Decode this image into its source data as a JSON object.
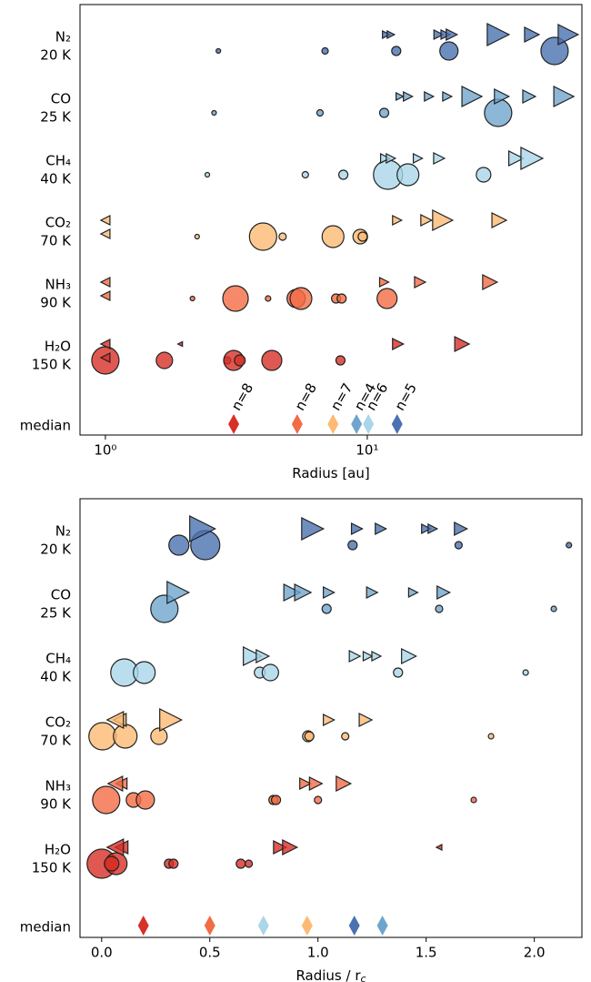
{
  "chart_data": [
    {
      "type": "scatter",
      "xlabel": "Radius [au]",
      "log_x": true,
      "xlim": [
        0.8,
        66
      ],
      "xticks": [
        {
          "value": 1,
          "label": "10⁰"
        },
        {
          "value": 10,
          "label": "10¹"
        }
      ],
      "median_label": "median",
      "series": [
        {
          "name": "N₂",
          "temperature": "20 K",
          "color": "#4a72b0",
          "median": 13.0,
          "n_label": "n=5",
          "x": [
            2.7,
            6.9,
            12.9,
            20.5,
            51.9,
            11.8,
            12.3,
            18.7,
            19.9,
            21.0,
            31.6,
            42.5,
            58.5
          ],
          "sizes": [
            2.5,
            3.5,
            5,
            10,
            15,
            4,
            4,
            5,
            5,
            6,
            12,
            8,
            11
          ],
          "markers": [
            "o",
            "o",
            "o",
            "o",
            "o",
            ">",
            ">",
            ">",
            ">",
            ">",
            ">",
            ">",
            ">"
          ]
        },
        {
          "name": "CO",
          "temperature": "25 K",
          "color": "#6fa5cc",
          "median": 9.1,
          "n_label": "n=4",
          "x": [
            2.6,
            6.6,
            11.6,
            31.6,
            13.3,
            14.3,
            17.2,
            20.2,
            25.1,
            32.6,
            41.5,
            56.3
          ],
          "sizes": [
            2.5,
            3.5,
            5,
            15,
            4,
            5,
            5,
            5,
            11,
            8,
            7,
            11
          ],
          "markers": [
            "o",
            "o",
            "o",
            "o",
            ">",
            ">",
            ">",
            ">",
            ">",
            ">",
            ">",
            ">"
          ]
        },
        {
          "name": "CH₄",
          "temperature": "40 K",
          "color": "#a9d6e8",
          "median": 10.1,
          "n_label": "n=6",
          "x": [
            2.45,
            5.8,
            8.1,
            12.0,
            14.3,
            27.8,
            11.7,
            12.3,
            15.6,
            18.8,
            37.0,
            42.5
          ],
          "sizes": [
            2.5,
            3.5,
            5,
            16,
            12,
            8,
            5,
            5,
            5,
            6,
            8,
            12
          ],
          "markers": [
            "o",
            "o",
            "o",
            "o",
            "o",
            "o",
            ">",
            ">",
            ">",
            ">",
            ">",
            ">"
          ]
        },
        {
          "name": "CO₂",
          "temperature": "70 K",
          "color": "#fdba74",
          "median": 7.4,
          "n_label": "n=7",
          "x": [
            2.24,
            4.0,
            4.75,
            7.4,
            9.4,
            9.6,
            13.0,
            16.8,
            19.4,
            31.9,
            1.0,
            1.0
          ],
          "sizes": [
            2.5,
            15,
            4,
            12,
            8,
            5,
            5,
            6,
            11,
            8,
            5,
            5
          ],
          "markers": [
            "o",
            "o",
            "o",
            "o",
            "o",
            "o",
            ">",
            ">",
            ">",
            ">",
            "<",
            "<"
          ]
        },
        {
          "name": "NH₃",
          "temperature": "90 K",
          "color": "#f26c45",
          "median": 5.4,
          "n_label": "n=8",
          "x": [
            2.15,
            3.14,
            4.18,
            5.35,
            5.58,
            7.6,
            7.98,
            11.9,
            11.6,
            15.9,
            29.4,
            1.0,
            1.0
          ],
          "sizes": [
            2.5,
            14,
            3,
            10,
            12,
            5,
            5,
            11,
            5,
            6,
            8,
            5,
            5
          ],
          "markers": [
            "o",
            "o",
            "o",
            "o",
            "o",
            "o",
            "o",
            "o",
            ">",
            ">",
            ">",
            "<",
            "<"
          ]
        },
        {
          "name": "H₂O",
          "temperature": "150 K",
          "color": "#d73027",
          "median": 3.09,
          "n_label": "n=8",
          "x": [
            1.0,
            1.68,
            2.92,
            3.09,
            3.26,
            4.32,
            7.9,
            13.1,
            23.0,
            1.93,
            1.0,
            1.0
          ],
          "sizes": [
            15,
            9,
            4,
            11,
            6,
            11,
            5,
            6,
            8,
            2.5,
            5,
            5
          ],
          "markers": [
            "o",
            "o",
            "o",
            "o",
            "o",
            "o",
            "o",
            ">",
            ">",
            "<",
            "<",
            "<"
          ]
        }
      ]
    },
    {
      "type": "scatter",
      "xlabel": "Radius / r",
      "xlabel_sub": "c",
      "log_x": false,
      "xlim": [
        -0.1,
        2.22
      ],
      "xticks": [
        {
          "value": 0,
          "label": "0.0"
        },
        0.5,
        {
          "value": 1,
          "label": "1.0"
        },
        1.5,
        {
          "value": 2,
          "label": "2.0"
        }
      ],
      "median_label": "median",
      "series": [
        {
          "name": "N₂",
          "temperature": "20 K",
          "color": "#4a72b0",
          "median": 1.168,
          "x": [
            0.357,
            0.479,
            1.16,
            1.65,
            2.16,
            0.466,
            0.975,
            1.18,
            1.29,
            1.5,
            1.53,
            1.66
          ],
          "sizes": [
            11,
            16,
            5,
            4,
            3,
            14,
            12,
            6,
            6,
            5,
            5,
            7
          ],
          "markers": [
            "o",
            "o",
            "o",
            "o",
            "o",
            ">",
            ">",
            ">",
            ">",
            ">",
            ">",
            ">"
          ]
        },
        {
          "name": "CO",
          "temperature": "25 K",
          "color": "#6fa5cc",
          "median": 1.298,
          "x": [
            0.29,
            1.04,
            1.56,
            2.09,
            0.353,
            0.88,
            0.93,
            1.05,
            1.25,
            1.44,
            1.58
          ],
          "sizes": [
            15,
            5,
            4,
            3,
            12,
            9,
            9,
            6,
            6,
            5,
            7
          ],
          "markers": [
            "o",
            "o",
            "o",
            "o",
            ">",
            ">",
            ">",
            ">",
            ">",
            ">",
            ">"
          ]
        },
        {
          "name": "CH₄",
          "temperature": "40 K",
          "color": "#a9d6e8",
          "median": 0.748,
          "x": [
            0.105,
            0.197,
            0.731,
            0.78,
            1.37,
            1.96,
            0.697,
            0.744,
            1.17,
            1.23,
            1.27,
            1.42
          ],
          "sizes": [
            15,
            12,
            6,
            9,
            5,
            3,
            10,
            7,
            6,
            5,
            5,
            8
          ],
          "markers": [
            "o",
            "o",
            "o",
            "o",
            "o",
            "o",
            ">",
            ">",
            ">",
            ">",
            ">",
            ">"
          ]
        },
        {
          "name": "CO₂",
          "temperature": "70 K",
          "color": "#fdba74",
          "median": 0.95,
          "x": [
            0.004,
            0.109,
            0.265,
            0.954,
            0.96,
            1.126,
            1.8,
            0.319,
            1.05,
            1.22,
            0.084,
            0.063
          ],
          "sizes": [
            15,
            13,
            9,
            6,
            5,
            4,
            3,
            12,
            6,
            7,
            7,
            9
          ],
          "markers": [
            "o",
            "o",
            "o",
            "o",
            "o",
            "o",
            "o",
            ">",
            ">",
            ">",
            "<",
            "<"
          ]
        },
        {
          "name": "NH₃",
          "temperature": "90 K",
          "color": "#f26c45",
          "median": 0.5,
          "x": [
            0.021,
            0.147,
            0.202,
            0.794,
            0.806,
            1.0,
            1.72,
            0.941,
            0.99,
            1.118,
            0.092,
            0.063
          ],
          "sizes": [
            15,
            8,
            10,
            5,
            5,
            4,
            3,
            6,
            7,
            8,
            6,
            8
          ],
          "markers": [
            "o",
            "o",
            "o",
            "o",
            "o",
            "o",
            "o",
            ">",
            ">",
            ">",
            "<",
            "<"
          ]
        },
        {
          "name": "H₂O",
          "temperature": "150 K",
          "color": "#d73027",
          "median": 0.193,
          "x": [
            0.0,
            0.067,
            0.046,
            0.311,
            0.332,
            0.643,
            0.68,
            0.824,
            0.87,
            0.092,
            0.063,
            1.56
          ],
          "sizes": [
            16,
            12,
            8,
            5,
            5,
            5,
            4,
            7,
            8,
            7,
            9,
            3
          ],
          "markers": [
            "o",
            "o",
            "o",
            "o",
            "o",
            "o",
            "o",
            ">",
            ">",
            "<",
            "<",
            "<"
          ]
        }
      ]
    }
  ]
}
